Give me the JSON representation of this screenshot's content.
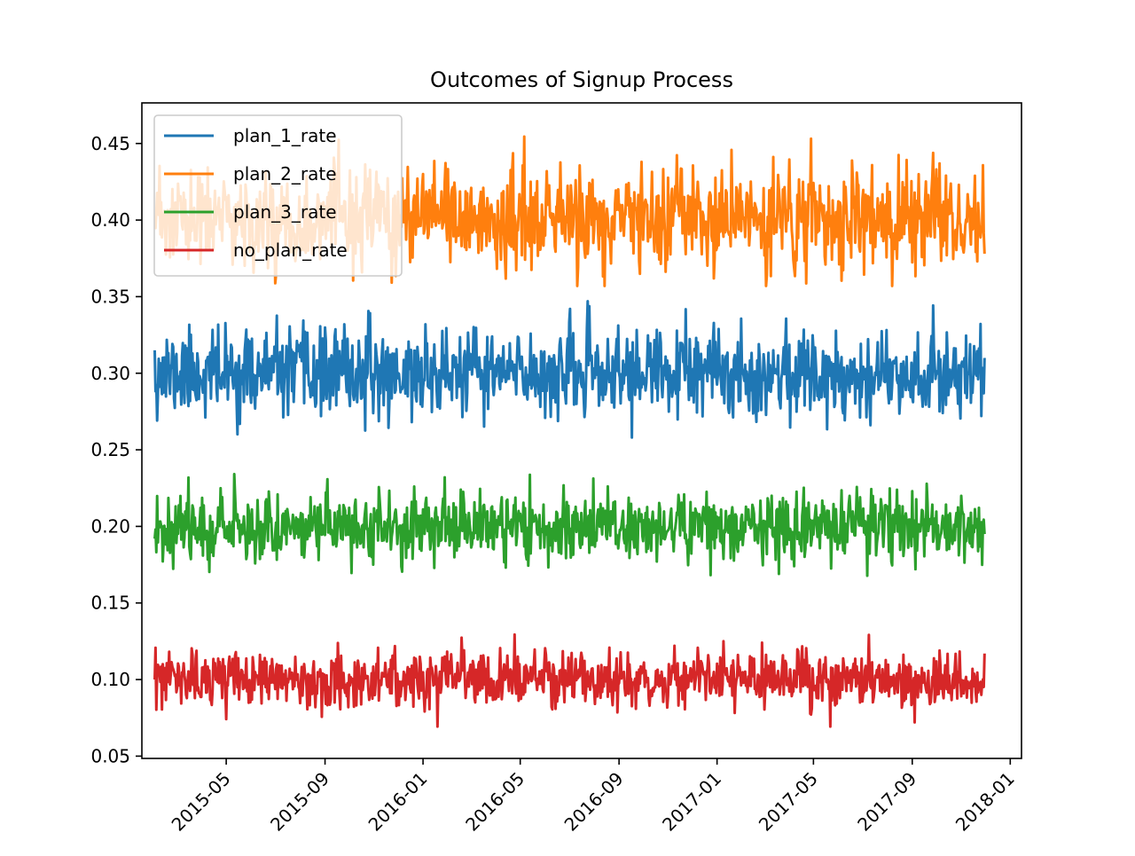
{
  "chart_data": {
    "type": "line",
    "title": "Outcomes of Signup Process",
    "xlabel": "",
    "ylabel": "",
    "x_start": "2015-02-01",
    "x_end": "2017-11-30",
    "xlim": [
      "2015-01-16",
      "2018-01-15"
    ],
    "ylim": [
      0.0485,
      0.4765
    ],
    "x_ticks": [
      "2015-05",
      "2015-09",
      "2016-01",
      "2016-05",
      "2016-09",
      "2017-01",
      "2017-05",
      "2017-09",
      "2018-01"
    ],
    "y_ticks": [
      "0.05",
      "0.10",
      "0.15",
      "0.20",
      "0.25",
      "0.30",
      "0.35",
      "0.40",
      "0.45"
    ],
    "grid": false,
    "legend_position": "top-left",
    "series": [
      {
        "name": "plan_1_rate",
        "color": "#1f77b4",
        "mean": 0.3,
        "spread": 0.014,
        "min": 0.258,
        "max": 0.347,
        "first": 0.315,
        "last": 0.31,
        "seed": 11
      },
      {
        "name": "plan_2_rate",
        "color": "#ff7f0e",
        "mean": 0.4,
        "spread": 0.016,
        "min": 0.357,
        "max": 0.456,
        "first": 0.395,
        "last": 0.378,
        "seed": 23
      },
      {
        "name": "plan_3_rate",
        "color": "#2ca02c",
        "mean": 0.2,
        "spread": 0.011,
        "min": 0.155,
        "max": 0.237,
        "first": 0.192,
        "last": 0.195,
        "seed": 37
      },
      {
        "name": "no_plan_rate",
        "color": "#d62728",
        "mean": 0.1,
        "spread": 0.009,
        "min": 0.068,
        "max": 0.133,
        "first": 0.1,
        "last": 0.117,
        "seed": 53
      }
    ]
  }
}
